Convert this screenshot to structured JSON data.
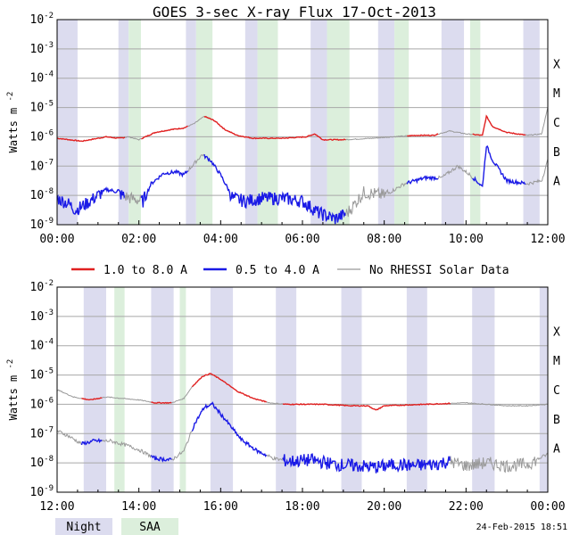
{
  "title": "GOES 3-sec X-ray Flux   17-Oct-2013",
  "ylabel_base": "Watts m",
  "ylabel_exp": "-2",
  "footer_date": "24-Feb-2015 18:51",
  "legend": {
    "items": [
      {
        "label": "1.0 to 8.0 A",
        "color": "#e02020"
      },
      {
        "label": "0.5 to 4.0 A",
        "color": "#1a1ae6"
      },
      {
        "label": "No RHESSI Solar Data",
        "color": "#999999"
      }
    ],
    "night_label": "Night",
    "saa_label": "SAA",
    "night_color": "#dcdcef",
    "saa_color": "#dcefdc"
  },
  "colors": {
    "long": "#e02020",
    "short": "#1a1ae6",
    "no_data": "#999999",
    "grid": "#a8a8a8"
  },
  "chart_data": [
    {
      "type": "line",
      "ylim_exp": [
        -9,
        -2
      ],
      "log_scale": true,
      "y_ticks": [
        "10-9",
        "10-8",
        "10-7",
        "10-6",
        "10-5",
        "10-4",
        "10-3",
        "10-2"
      ],
      "class_labels": [
        "A",
        "B",
        "C",
        "M",
        "X"
      ],
      "xlim": [
        "00:00",
        "12:00"
      ],
      "x_ticks": [
        "00:00",
        "02:00",
        "04:00",
        "06:00",
        "08:00",
        "10:00",
        "12:00"
      ],
      "night_bands": [
        [
          0.0,
          0.5
        ],
        [
          1.5,
          1.75
        ],
        [
          3.15,
          3.4
        ],
        [
          4.6,
          4.9
        ],
        [
          6.2,
          6.6
        ],
        [
          7.85,
          8.25
        ],
        [
          9.4,
          9.95
        ],
        [
          11.4,
          11.8
        ]
      ],
      "saa_bands": [
        [
          1.75,
          2.05
        ],
        [
          3.4,
          3.8
        ],
        [
          4.9,
          5.4
        ],
        [
          6.6,
          7.15
        ],
        [
          8.25,
          8.6
        ],
        [
          10.1,
          10.35
        ]
      ],
      "series": [
        {
          "name": "1.0 to 8.0 A",
          "color": "#e02020",
          "log_values": [
            [
              0.0,
              -6.05
            ],
            [
              0.6,
              -6.15
            ],
            [
              1.2,
              -6.0
            ],
            [
              1.5,
              -6.05
            ],
            [
              1.75,
              -6.0
            ],
            [
              2.0,
              -6.1
            ],
            [
              2.4,
              -5.85
            ],
            [
              2.8,
              -5.75
            ],
            [
              3.1,
              -5.7
            ],
            [
              3.35,
              -5.55
            ],
            [
              3.6,
              -5.3
            ],
            [
              3.85,
              -5.45
            ],
            [
              4.1,
              -5.75
            ],
            [
              4.4,
              -5.95
            ],
            [
              4.8,
              -6.05
            ],
            [
              5.5,
              -6.05
            ],
            [
              6.1,
              -6.0
            ],
            [
              6.3,
              -5.9
            ],
            [
              6.5,
              -6.1
            ],
            [
              7.0,
              -6.1
            ],
            [
              7.7,
              -6.05
            ],
            [
              8.2,
              -6.0
            ],
            [
              8.8,
              -5.95
            ],
            [
              9.2,
              -5.95
            ],
            [
              9.6,
              -5.8
            ],
            [
              10.0,
              -5.9
            ],
            [
              10.4,
              -5.95
            ],
            [
              10.5,
              -5.3
            ],
            [
              10.65,
              -5.65
            ],
            [
              11.0,
              -5.85
            ],
            [
              11.5,
              -5.95
            ],
            [
              11.85,
              -5.9
            ],
            [
              12.0,
              -5.0
            ]
          ]
        },
        {
          "name": "0.5 to 4.0 A",
          "color": "#1a1ae6",
          "log_values": [
            [
              0.0,
              -8.1
            ],
            [
              0.3,
              -8.3
            ],
            [
              0.45,
              -8.5
            ],
            [
              0.7,
              -8.3
            ],
            [
              1.0,
              -8.0
            ],
            [
              1.2,
              -7.8
            ],
            [
              1.4,
              -7.85
            ],
            [
              1.6,
              -8.0
            ],
            [
              1.8,
              -8.1
            ],
            [
              2.1,
              -8.2
            ],
            [
              2.3,
              -7.6
            ],
            [
              2.6,
              -7.25
            ],
            [
              2.9,
              -7.2
            ],
            [
              3.1,
              -7.3
            ],
            [
              3.3,
              -7.0
            ],
            [
              3.55,
              -6.6
            ],
            [
              3.75,
              -6.8
            ],
            [
              4.0,
              -7.3
            ],
            [
              4.3,
              -8.1
            ],
            [
              4.6,
              -8.2
            ],
            [
              5.0,
              -8.1
            ],
            [
              5.5,
              -8.1
            ],
            [
              6.0,
              -8.2
            ],
            [
              6.4,
              -8.6
            ],
            [
              6.8,
              -8.8
            ],
            [
              7.1,
              -8.6
            ],
            [
              7.5,
              -7.9
            ],
            [
              8.0,
              -8.0
            ],
            [
              8.5,
              -7.6
            ],
            [
              9.0,
              -7.4
            ],
            [
              9.4,
              -7.4
            ],
            [
              9.8,
              -7.0
            ],
            [
              10.1,
              -7.3
            ],
            [
              10.4,
              -7.7
            ],
            [
              10.5,
              -6.3
            ],
            [
              10.65,
              -6.8
            ],
            [
              11.0,
              -7.5
            ],
            [
              11.5,
              -7.6
            ],
            [
              11.85,
              -7.5
            ],
            [
              12.0,
              -6.8
            ]
          ]
        }
      ],
      "no_data_intervals": [
        [
          1.65,
          2.05
        ],
        [
          3.2,
          3.6
        ],
        [
          7.05,
          8.55
        ],
        [
          9.3,
          10.15
        ],
        [
          11.45,
          12.0
        ]
      ]
    },
    {
      "type": "line",
      "ylim_exp": [
        -9,
        -2
      ],
      "log_scale": true,
      "y_ticks": [
        "10-9",
        "10-8",
        "10-7",
        "10-6",
        "10-5",
        "10-4",
        "10-3",
        "10-2"
      ],
      "class_labels": [
        "A",
        "B",
        "C",
        "M",
        "X"
      ],
      "xlim": [
        "12:00",
        "00:00"
      ],
      "x_ticks": [
        "12:00",
        "14:00",
        "16:00",
        "18:00",
        "20:00",
        "22:00",
        "00:00"
      ],
      "night_bands": [
        [
          0.65,
          1.2
        ],
        [
          2.3,
          2.85
        ],
        [
          3.75,
          4.3
        ],
        [
          5.35,
          5.85
        ],
        [
          6.95,
          7.45
        ],
        [
          8.55,
          9.05
        ],
        [
          10.15,
          10.7
        ],
        [
          11.8,
          12.0
        ]
      ],
      "saa_bands": [
        [
          1.4,
          1.65
        ],
        [
          3.0,
          3.15
        ]
      ],
      "series": [
        {
          "name": "1.0 to 8.0 A",
          "color": "#e02020",
          "log_values": [
            [
              0.0,
              -5.5
            ],
            [
              0.4,
              -5.75
            ],
            [
              0.8,
              -5.85
            ],
            [
              1.2,
              -5.75
            ],
            [
              1.6,
              -5.8
            ],
            [
              2.0,
              -5.85
            ],
            [
              2.4,
              -5.95
            ],
            [
              2.8,
              -5.95
            ],
            [
              3.1,
              -5.8
            ],
            [
              3.3,
              -5.4
            ],
            [
              3.55,
              -5.05
            ],
            [
              3.75,
              -4.95
            ],
            [
              4.0,
              -5.15
            ],
            [
              4.4,
              -5.55
            ],
            [
              4.8,
              -5.8
            ],
            [
              5.2,
              -5.95
            ],
            [
              5.6,
              -6.0
            ],
            [
              6.5,
              -6.0
            ],
            [
              7.2,
              -6.05
            ],
            [
              7.6,
              -6.05
            ],
            [
              7.8,
              -6.2
            ],
            [
              8.0,
              -6.05
            ],
            [
              9.0,
              -6.0
            ],
            [
              10.0,
              -5.95
            ],
            [
              10.5,
              -6.0
            ],
            [
              11.0,
              -6.05
            ],
            [
              11.5,
              -6.05
            ],
            [
              12.0,
              -6.0
            ]
          ]
        },
        {
          "name": "0.5 to 4.0 A",
          "color": "#1a1ae6",
          "log_values": [
            [
              0.0,
              -6.9
            ],
            [
              0.3,
              -7.1
            ],
            [
              0.6,
              -7.35
            ],
            [
              0.9,
              -7.25
            ],
            [
              1.3,
              -7.25
            ],
            [
              1.7,
              -7.4
            ],
            [
              2.0,
              -7.55
            ],
            [
              2.4,
              -7.85
            ],
            [
              2.8,
              -7.9
            ],
            [
              3.1,
              -7.6
            ],
            [
              3.35,
              -6.7
            ],
            [
              3.6,
              -6.1
            ],
            [
              3.8,
              -6.0
            ],
            [
              4.1,
              -6.5
            ],
            [
              4.5,
              -7.2
            ],
            [
              4.9,
              -7.6
            ],
            [
              5.3,
              -7.85
            ],
            [
              5.7,
              -7.95
            ],
            [
              6.2,
              -7.9
            ],
            [
              6.8,
              -8.05
            ],
            [
              7.3,
              -8.1
            ],
            [
              7.8,
              -8.15
            ],
            [
              8.3,
              -8.05
            ],
            [
              8.7,
              -8.1
            ],
            [
              9.2,
              -8.05
            ],
            [
              9.6,
              -7.95
            ],
            [
              10.0,
              -8.1
            ],
            [
              10.5,
              -8.0
            ],
            [
              11.0,
              -8.1
            ],
            [
              11.5,
              -8.05
            ],
            [
              12.0,
              -7.7
            ]
          ]
        }
      ],
      "no_data_intervals": [
        [
          0.0,
          0.6
        ],
        [
          1.1,
          2.3
        ],
        [
          2.8,
          3.3
        ],
        [
          5.1,
          5.5
        ],
        [
          9.6,
          12.0
        ]
      ]
    }
  ]
}
